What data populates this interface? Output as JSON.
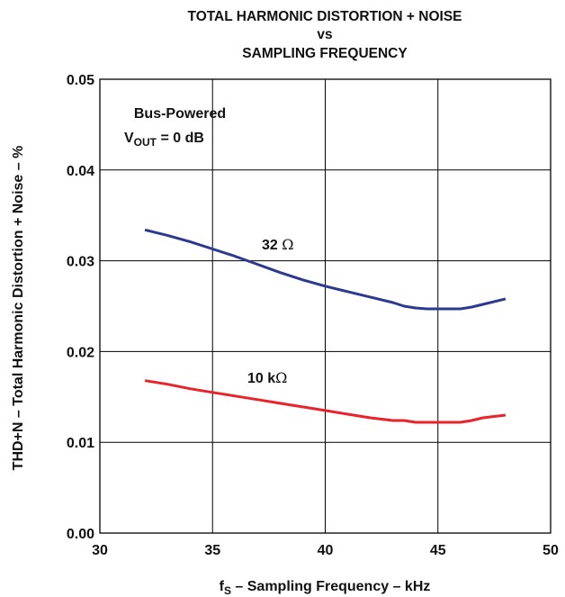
{
  "chart_data": {
    "type": "line",
    "title_lines": [
      "TOTAL HARMONIC DISTORTION + NOISE",
      "vs",
      "SAMPLING FREQUENCY"
    ],
    "xlabel": {
      "prefix": "f",
      "sub": "S",
      "rest": " – Sampling Frequency – kHz"
    },
    "ylabel": "THD+N – Total Harmonic Distortion + Noise – %",
    "xlim": [
      30,
      50
    ],
    "ylim": [
      0,
      0.05
    ],
    "x_ticks": [
      "30",
      "35",
      "40",
      "45",
      "50"
    ],
    "y_ticks": [
      "0.00",
      "0.01",
      "0.02",
      "0.03",
      "0.04",
      "0.05"
    ],
    "grid": true,
    "annotations": {
      "condition1": "Bus-Powered",
      "condition2": {
        "prefix": "V",
        "sub": "OUT",
        "rest": " = 0 dB"
      }
    },
    "series": [
      {
        "name": "32 Ω",
        "label_text": "32 ",
        "label_symbol": "Ω",
        "color": "#2b3990",
        "x": [
          32,
          33,
          34,
          35,
          36,
          37,
          38,
          39,
          40,
          41,
          42,
          43,
          43.5,
          44,
          44.5,
          45,
          46,
          46.5,
          47,
          48
        ],
        "y": [
          0.0334,
          0.0328,
          0.0321,
          0.0313,
          0.0305,
          0.0296,
          0.0287,
          0.0279,
          0.0272,
          0.0266,
          0.026,
          0.0254,
          0.025,
          0.0248,
          0.0247,
          0.0247,
          0.0247,
          0.0249,
          0.0252,
          0.0258
        ]
      },
      {
        "name": "10 kΩ",
        "label_text": "10 k",
        "label_symbol": "Ω",
        "color": "#e8232a",
        "x": [
          32,
          33,
          34,
          35,
          36,
          37,
          38,
          39,
          40,
          41,
          42,
          43,
          43.5,
          44,
          45,
          46,
          46.5,
          47,
          48
        ],
        "y": [
          0.0168,
          0.0164,
          0.0159,
          0.0155,
          0.0151,
          0.0147,
          0.0143,
          0.0139,
          0.0135,
          0.0131,
          0.0127,
          0.0124,
          0.0124,
          0.0122,
          0.0122,
          0.0122,
          0.0124,
          0.0127,
          0.013
        ]
      }
    ]
  }
}
